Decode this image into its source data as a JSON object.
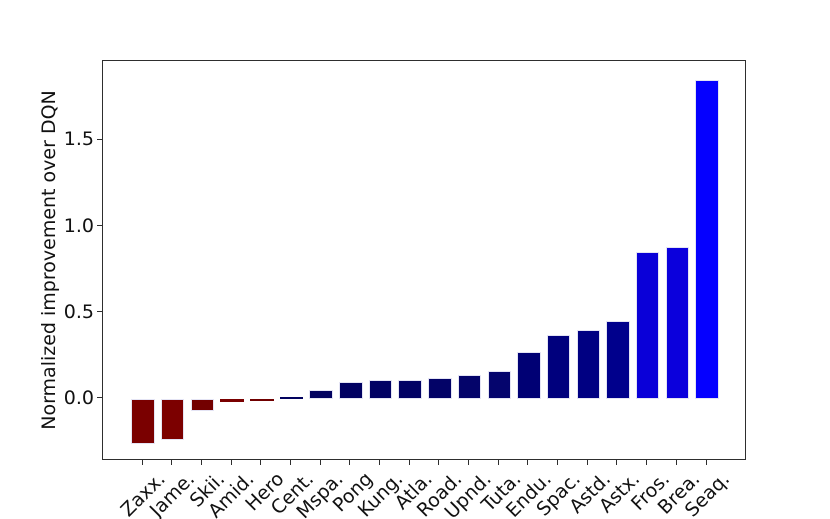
{
  "figure": {
    "background": "#ffffff"
  },
  "chart_data": {
    "type": "bar",
    "title": "",
    "xlabel": "",
    "ylabel": "Normalized improvement over DQN",
    "categories": [
      "Zaxx.",
      "Jame.",
      "Skii.",
      "Amid.",
      "Hero",
      "Cent.",
      "Mspa.",
      "Pong",
      "Kung.",
      "Atla.",
      "Road.",
      "Upnd.",
      "Tuta.",
      "Endu.",
      "Spac.",
      "Astd.",
      "Astx.",
      "Fros.",
      "Brea.",
      "Seaq."
    ],
    "values": [
      -0.26,
      -0.24,
      -0.07,
      -0.02,
      -0.01,
      0.01,
      0.05,
      0.1,
      0.11,
      0.11,
      0.12,
      0.14,
      0.16,
      0.27,
      0.37,
      0.4,
      0.45,
      0.85,
      0.88,
      1.85
    ],
    "bar_colors": [
      "#7a0000",
      "#7c0000",
      "#730000",
      "#7a0000",
      "#700000",
      "#02025e",
      "#010160",
      "#010162",
      "#020264",
      "#020265",
      "#030367",
      "#04046a",
      "#05056d",
      "#000074",
      "#00007d",
      "#000082",
      "#00008c",
      "#0a00d8",
      "#0b00dc",
      "#0500ff"
    ],
    "bar_edge_color": "#e4e4f4",
    "ytick_labels": [
      "0.0",
      "0.5",
      "1.0",
      "1.5"
    ],
    "ytick_values": [
      0.0,
      0.5,
      1.0,
      1.5
    ],
    "ylim": [
      -0.36,
      1.96
    ],
    "grid": false,
    "legend": null,
    "axis_color": "#2e2e2e",
    "text_color": "#111111"
  }
}
